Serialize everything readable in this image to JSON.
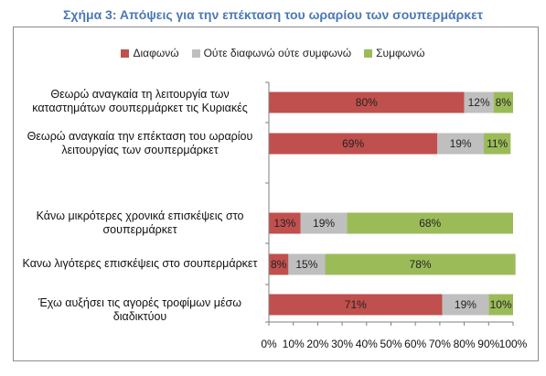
{
  "title": "Σχήμα 3: Απόψεις για την επέκταση του ωραρίου των σουπερμάρκετ",
  "colors": {
    "disagree": "#c0504d",
    "neutral": "#bfbfbf",
    "agree": "#9bbb59"
  },
  "chart_data": {
    "type": "bar",
    "orientation": "horizontal",
    "stacked": true,
    "title": "Σχήμα 3: Απόψεις για την επέκταση του ωραρίου των σουπερμάρκετ",
    "legend_position": "top",
    "categories": [
      "Θεωρώ αναγκαία τη λειτουργία των καταστημάτων σουπερμάρκετ τις Κυριακές",
      "Θεωρώ αναγκαία την επέκταση του ωραρίου λειτουργίας των σουπερμάρκετ",
      "Κάνω μικρότερες χρονικά επισκέψεις στο σουπερμάρκετ",
      "Κανω λιγότερες επισκέψεις στο σουπερμάρκετ",
      "Έχω αυξήσει τις αγορές τροφίμων μέσω διαδικτύου"
    ],
    "series": [
      {
        "name": "Διαφωνώ",
        "values": [
          80,
          69,
          13,
          8,
          71
        ]
      },
      {
        "name": "Ούτε διαφωνώ ούτε συμφωνώ",
        "values": [
          12,
          19,
          19,
          15,
          19
        ]
      },
      {
        "name": "Συμφωνώ",
        "values": [
          8,
          11,
          68,
          78,
          10
        ]
      }
    ],
    "value_labels": [
      [
        "80%",
        "12%",
        "8%"
      ],
      [
        "69%",
        "19%",
        "11%"
      ],
      [
        "13%",
        "19%",
        "68%"
      ],
      [
        "8%",
        "15%",
        "78%"
      ],
      [
        "71%",
        "19%",
        "10%"
      ]
    ],
    "xlim": [
      0,
      100
    ],
    "x_ticks": [
      "0%",
      "10%",
      "20%",
      "30%",
      "40%",
      "50%",
      "60%",
      "70%",
      "80%",
      "90%",
      "100%"
    ],
    "grid": false
  }
}
